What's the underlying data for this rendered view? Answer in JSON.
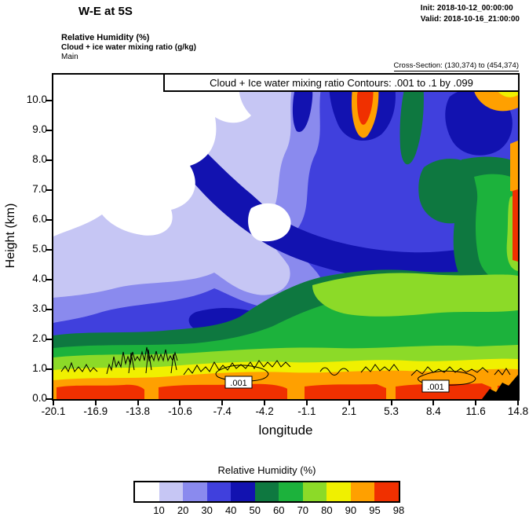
{
  "header": {
    "title": "W-E at 5S",
    "init": "Init: 2018-10-12_00:00:00",
    "valid": "Valid: 2018-10-16_21:00:00",
    "field1": "Relative Humidity  (%)",
    "field2": "Cloud + ice water mixing ratio  (g/kg)",
    "model": "Main",
    "cross_section": "Cross-Section: (130,374) to (454,374)"
  },
  "plot": {
    "contour_title": "Cloud + Ice water mixing ratio Contours: .001 to .1 by .099",
    "xlabel": "longitude",
    "ylabel": "Height (km)",
    "x_ticks": [
      "-20.1",
      "-16.9",
      "-13.8",
      "-10.6",
      "-7.4",
      "-4.2",
      "-1.1",
      "2.1",
      "5.3",
      "8.4",
      "11.6",
      "14.8"
    ],
    "y_ticks": [
      "10.0",
      "9.0",
      "8.0",
      "7.0",
      "6.0",
      "5.0",
      "4.0",
      "3.0",
      "2.0",
      "1.0",
      "0.0"
    ],
    "contour_labels": [
      ".001",
      ".001"
    ]
  },
  "colorbar": {
    "title": "Relative Humidity  (%)",
    "labels": [
      "10",
      "20",
      "30",
      "40",
      "50",
      "60",
      "70",
      "80",
      "90",
      "95",
      "98"
    ],
    "colors": [
      "#ffffff",
      "#c6c6f4",
      "#8a8aee",
      "#4040dd",
      "#1212b0",
      "#0e7840",
      "#1cb23c",
      "#8cda28",
      "#f0f000",
      "#ffa000",
      "#f03000"
    ]
  },
  "chart_data": {
    "type": "heatmap",
    "title": "Cloud + Ice water mixing ratio Contours: .001 to .1 by .099",
    "subtitle": "W-E vertical cross-section at 5S, valid 2018-10-16_21:00:00",
    "xlabel": "longitude",
    "ylabel": "Height (km)",
    "xlim": [
      -20.1,
      14.8
    ],
    "ylim": [
      0.0,
      10.9
    ],
    "x_tick_values": [
      -20.1,
      -16.9,
      -13.8,
      -10.6,
      -7.4,
      -4.2,
      -1.1,
      2.1,
      5.3,
      8.4,
      11.6,
      14.8
    ],
    "y_tick_values": [
      0.0,
      1.0,
      2.0,
      3.0,
      4.0,
      5.0,
      6.0,
      7.0,
      8.0,
      9.0,
      10.0
    ],
    "fill_variable": "Relative Humidity (%)",
    "fill_levels": [
      10,
      20,
      30,
      40,
      50,
      60,
      70,
      80,
      90,
      95,
      98
    ],
    "legend_position": "bottom colorbar",
    "grid": false,
    "rh_grid": {
      "heights_km": [
        0,
        1,
        2,
        3,
        4,
        5,
        6,
        7,
        8,
        9,
        10
      ],
      "longitudes": [
        -20.1,
        -16.9,
        -13.8,
        -10.6,
        -7.4,
        -4.2,
        -1.1,
        2.1,
        5.3,
        8.4,
        11.6,
        14.8
      ],
      "rh_percent": [
        [
          96,
          99,
          96,
          96,
          99,
          96,
          96,
          99,
          96,
          96,
          92,
          92
        ],
        [
          75,
          85,
          75,
          85,
          85,
          85,
          85,
          85,
          85,
          85,
          85,
          75
        ],
        [
          45,
          55,
          55,
          55,
          65,
          65,
          65,
          75,
          75,
          75,
          75,
          85
        ],
        [
          35,
          35,
          35,
          45,
          45,
          55,
          65,
          65,
          75,
          65,
          75,
          85
        ],
        [
          25,
          25,
          35,
          35,
          15,
          25,
          55,
          65,
          65,
          65,
          75,
          92
        ],
        [
          25,
          15,
          25,
          35,
          25,
          15,
          45,
          55,
          65,
          65,
          75,
          85
        ],
        [
          15,
          10,
          15,
          25,
          35,
          5,
          45,
          55,
          65,
          55,
          65,
          85
        ],
        [
          5,
          10,
          5,
          25,
          35,
          35,
          45,
          45,
          55,
          65,
          55,
          92
        ],
        [
          5,
          5,
          15,
          25,
          25,
          35,
          45,
          45,
          50,
          45,
          65,
          85
        ],
        [
          5,
          5,
          10,
          15,
          25,
          35,
          40,
          55,
          45,
          55,
          65,
          75
        ],
        [
          5,
          5,
          10,
          15,
          25,
          35,
          45,
          96,
          45,
          65,
          40,
          92
        ]
      ]
    },
    "overlay_variable": "Cloud + ice water mixing ratio (g/kg)",
    "overlay_contours": {
      "start": 0.001,
      "end": 0.1,
      "interval": 0.099,
      "label": ".001",
      "description": "black contour outlines of cloud/ice mixing ratio concentrated below ~1.5 km across most of the section; labeled .001 near longitudes -7 and 8.7"
    },
    "terrain": "black filled terrain at lower-right corner, longitudes ~12 to 14.8, up to ~0.9 km"
  }
}
